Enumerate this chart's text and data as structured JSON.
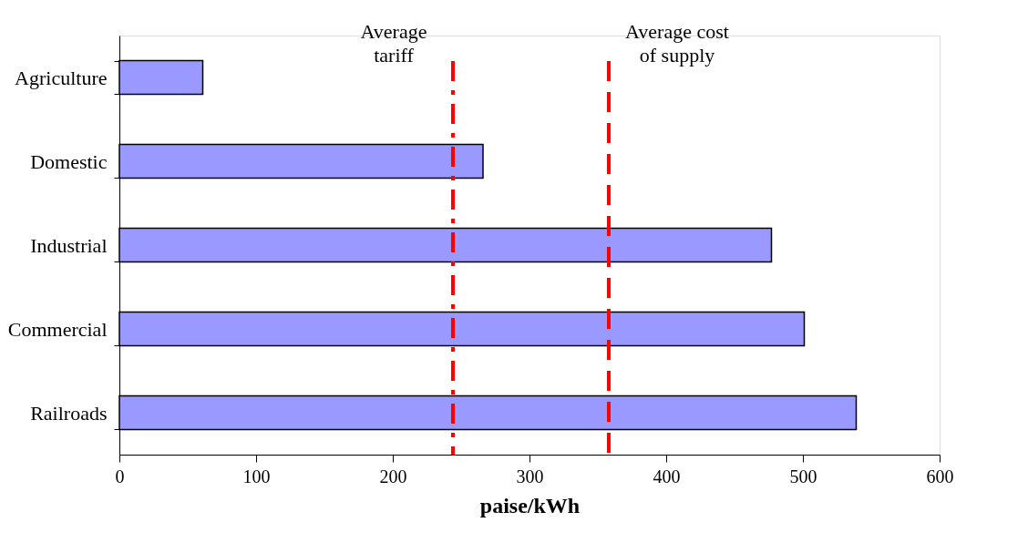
{
  "chart_data": {
    "type": "bar",
    "orientation": "horizontal",
    "xlabel": "paise/kWh",
    "categories": [
      "Agriculture",
      "Domestic",
      "Industrial",
      "Commercial",
      "Railroads"
    ],
    "values": [
      61,
      266,
      477,
      501,
      539
    ],
    "color": "#9999ff",
    "xlim": [
      0,
      600
    ],
    "xticks": [
      0,
      100,
      200,
      300,
      400,
      500,
      600
    ],
    "ref_lines": [
      {
        "axis": "x",
        "value": 244,
        "label": "Average\ntariff",
        "color": "#ff0000",
        "line_style": "dashdot"
      },
      {
        "axis": "x",
        "value": 358,
        "label": "Average cost\nof supply",
        "color": "#ff0000",
        "line_style": "dashed"
      }
    ]
  }
}
